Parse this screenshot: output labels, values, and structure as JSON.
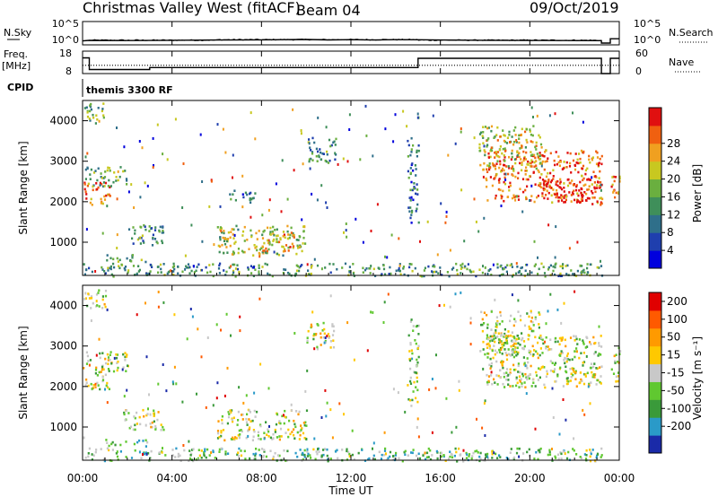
{
  "header": {
    "title": "Christmas Valley West (fitACF)",
    "beam": "Beam 04",
    "date": "09/Oct/2019"
  },
  "chart_data": [
    {
      "type": "line",
      "name": "nsky-panel",
      "left_label": "N.Sky",
      "right_label": "N.Search",
      "left_ticks": [
        "10^5",
        "10^0"
      ],
      "right_ticks": [
        "10^5",
        "10^0"
      ],
      "y_scale": "log",
      "ylim": [
        1,
        100000
      ],
      "x_hours": [
        0,
        24
      ],
      "nsky": [
        [
          0,
          3
        ],
        [
          0.3,
          3.8
        ],
        [
          2,
          3.5
        ],
        [
          4,
          3.9
        ],
        [
          6,
          4.2
        ],
        [
          8,
          4.5
        ],
        [
          9,
          4.8
        ],
        [
          10,
          5
        ],
        [
          11,
          4.4
        ],
        [
          12,
          4.7
        ],
        [
          13,
          4.3
        ],
        [
          14,
          4.8
        ],
        [
          15,
          4.6
        ],
        [
          16,
          4.2
        ],
        [
          18,
          3.9
        ],
        [
          20,
          3.6
        ],
        [
          23.2,
          3.4
        ],
        [
          23.2,
          1
        ],
        [
          23.6,
          1
        ],
        [
          23.6,
          6
        ],
        [
          24,
          6
        ]
      ]
    },
    {
      "type": "line",
      "name": "freq-panel",
      "left_label": "Freq.",
      "left_unit": "[MHz]",
      "right_label": "Nave",
      "left_ticks": [
        "18",
        "8"
      ],
      "right_ticks": [
        "60",
        "0"
      ],
      "ylim_freq": [
        8,
        18
      ],
      "ylim_nave": [
        0,
        60
      ],
      "freq": [
        [
          0,
          15
        ],
        [
          0.3,
          15
        ],
        [
          0.3,
          9.8
        ],
        [
          3,
          9.8
        ],
        [
          3,
          10.7
        ],
        [
          15,
          10.7
        ],
        [
          15,
          14.8
        ],
        [
          23.2,
          14.8
        ],
        [
          23.2,
          8
        ],
        [
          23.6,
          8
        ],
        [
          23.6,
          14.8
        ],
        [
          24,
          14.8
        ]
      ],
      "nave": [
        [
          0,
          22
        ],
        [
          23.2,
          22
        ],
        [
          23.6,
          22
        ],
        [
          24,
          22
        ]
      ]
    },
    {
      "type": "table",
      "name": "cpid-panel",
      "label": "CPID",
      "text": "themis 3300 RF"
    },
    {
      "type": "heatmap",
      "name": "power-panel",
      "ylabel": "Slant Range [km]",
      "yticks": [
        "1000",
        "2000",
        "3000",
        "4000"
      ],
      "ylim": [
        180,
        4500
      ],
      "colorbar_label": "Power [dB]",
      "colorbar_ticks": [
        "4",
        "8",
        "12",
        "16",
        "20",
        "24",
        "28"
      ],
      "colorbar_range": [
        0,
        32
      ],
      "colors": [
        "#0000dd",
        "#1f3fae",
        "#2f6f8a",
        "#3f8f5a",
        "#6aaf3f",
        "#c8c820",
        "#f0a020",
        "#f06010",
        "#e01010"
      ],
      "clusters": [
        {
          "t0": 0.0,
          "t1": 1.2,
          "r0": 1950,
          "r1": 2500,
          "level": 0.85
        },
        {
          "t0": 0.1,
          "t1": 2.0,
          "r0": 2400,
          "r1": 2900,
          "level": 0.45
        },
        {
          "t0": 0.0,
          "t1": 1.0,
          "r0": 3950,
          "r1": 4450,
          "level": 0.45
        },
        {
          "t0": 1.8,
          "t1": 3.6,
          "r0": 950,
          "r1": 1450,
          "level": 0.35
        },
        {
          "t0": 1.0,
          "t1": 3.0,
          "r0": 540,
          "r1": 720,
          "level": 0.45
        },
        {
          "t0": 6.0,
          "t1": 10.0,
          "r0": 700,
          "r1": 1450,
          "level": 0.55
        },
        {
          "t0": 8.0,
          "t1": 9.5,
          "r0": 800,
          "r1": 1300,
          "level": 0.75
        },
        {
          "t0": 10.0,
          "t1": 11.3,
          "r0": 2950,
          "r1": 3600,
          "level": 0.35
        },
        {
          "t0": 6.5,
          "t1": 7.8,
          "r0": 2000,
          "r1": 2300,
          "level": 0.25
        },
        {
          "t0": 14.5,
          "t1": 15.0,
          "r0": 1500,
          "r1": 3700,
          "level": 0.3
        },
        {
          "t0": 18.0,
          "t1": 23.2,
          "r0": 2000,
          "r1": 3300,
          "level": 0.8
        },
        {
          "t0": 20.5,
          "t1": 23.2,
          "r0": 1950,
          "r1": 2600,
          "level": 0.95
        },
        {
          "t0": 17.7,
          "t1": 20.5,
          "r0": 2800,
          "r1": 3900,
          "level": 0.6
        },
        {
          "t0": 23.6,
          "t1": 24.0,
          "r0": 2100,
          "r1": 3000,
          "level": 0.8
        },
        {
          "t0": 0.0,
          "t1": 23.2,
          "r0": 180,
          "r1": 500,
          "level": 0.4
        }
      ]
    },
    {
      "type": "heatmap",
      "name": "velocity-panel",
      "ylabel": "Slant Range [km]",
      "yticks": [
        "1000",
        "2000",
        "3000",
        "4000"
      ],
      "ylim": [
        180,
        4500
      ],
      "colorbar_label": "Velocity [m s⁻¹]",
      "colorbar_ticks": [
        "200",
        "100",
        "50",
        "15",
        "-15",
        "-50",
        "-100",
        "-200"
      ],
      "colorbar_range": [
        -250,
        250
      ],
      "colors": [
        "#1a2aa8",
        "#2a9ac8",
        "#3a9a3a",
        "#60c830",
        "#c8c8c8",
        "#ffc800",
        "#ff9a00",
        "#ff5a00",
        "#e00000"
      ],
      "clusters": [
        {
          "t0": 0.0,
          "t1": 1.2,
          "r0": 1950,
          "r1": 2500,
          "level": 0.5
        },
        {
          "t0": 0.1,
          "t1": 2.0,
          "r0": 2400,
          "r1": 2900,
          "level": 0.5
        },
        {
          "t0": 0.0,
          "t1": 1.0,
          "r0": 3950,
          "r1": 4450,
          "level": 0.5
        },
        {
          "t0": 1.8,
          "t1": 3.6,
          "r0": 950,
          "r1": 1450,
          "level": 0.5
        },
        {
          "t0": 1.0,
          "t1": 3.0,
          "r0": 540,
          "r1": 720,
          "level": 0.35
        },
        {
          "t0": 6.0,
          "t1": 10.0,
          "r0": 700,
          "r1": 1450,
          "level": 0.5
        },
        {
          "t0": 10.0,
          "t1": 11.3,
          "r0": 2950,
          "r1": 3600,
          "level": 0.55
        },
        {
          "t0": 14.5,
          "t1": 15.0,
          "r0": 1500,
          "r1": 3700,
          "level": 0.4
        },
        {
          "t0": 18.0,
          "t1": 23.2,
          "r0": 2000,
          "r1": 3300,
          "level": 0.5
        },
        {
          "t0": 17.7,
          "t1": 20.5,
          "r0": 2800,
          "r1": 3900,
          "level": 0.5
        },
        {
          "t0": 23.6,
          "t1": 24.0,
          "r0": 2100,
          "r1": 3000,
          "level": 0.5
        },
        {
          "t0": 0.0,
          "t1": 23.2,
          "r0": 180,
          "r1": 500,
          "level": 0.35
        }
      ]
    }
  ],
  "xaxis": {
    "label": "Time UT",
    "ticks": [
      "00:00",
      "04:00",
      "08:00",
      "12:00",
      "16:00",
      "20:00",
      "00:00"
    ],
    "range_hours": [
      0,
      24
    ]
  }
}
